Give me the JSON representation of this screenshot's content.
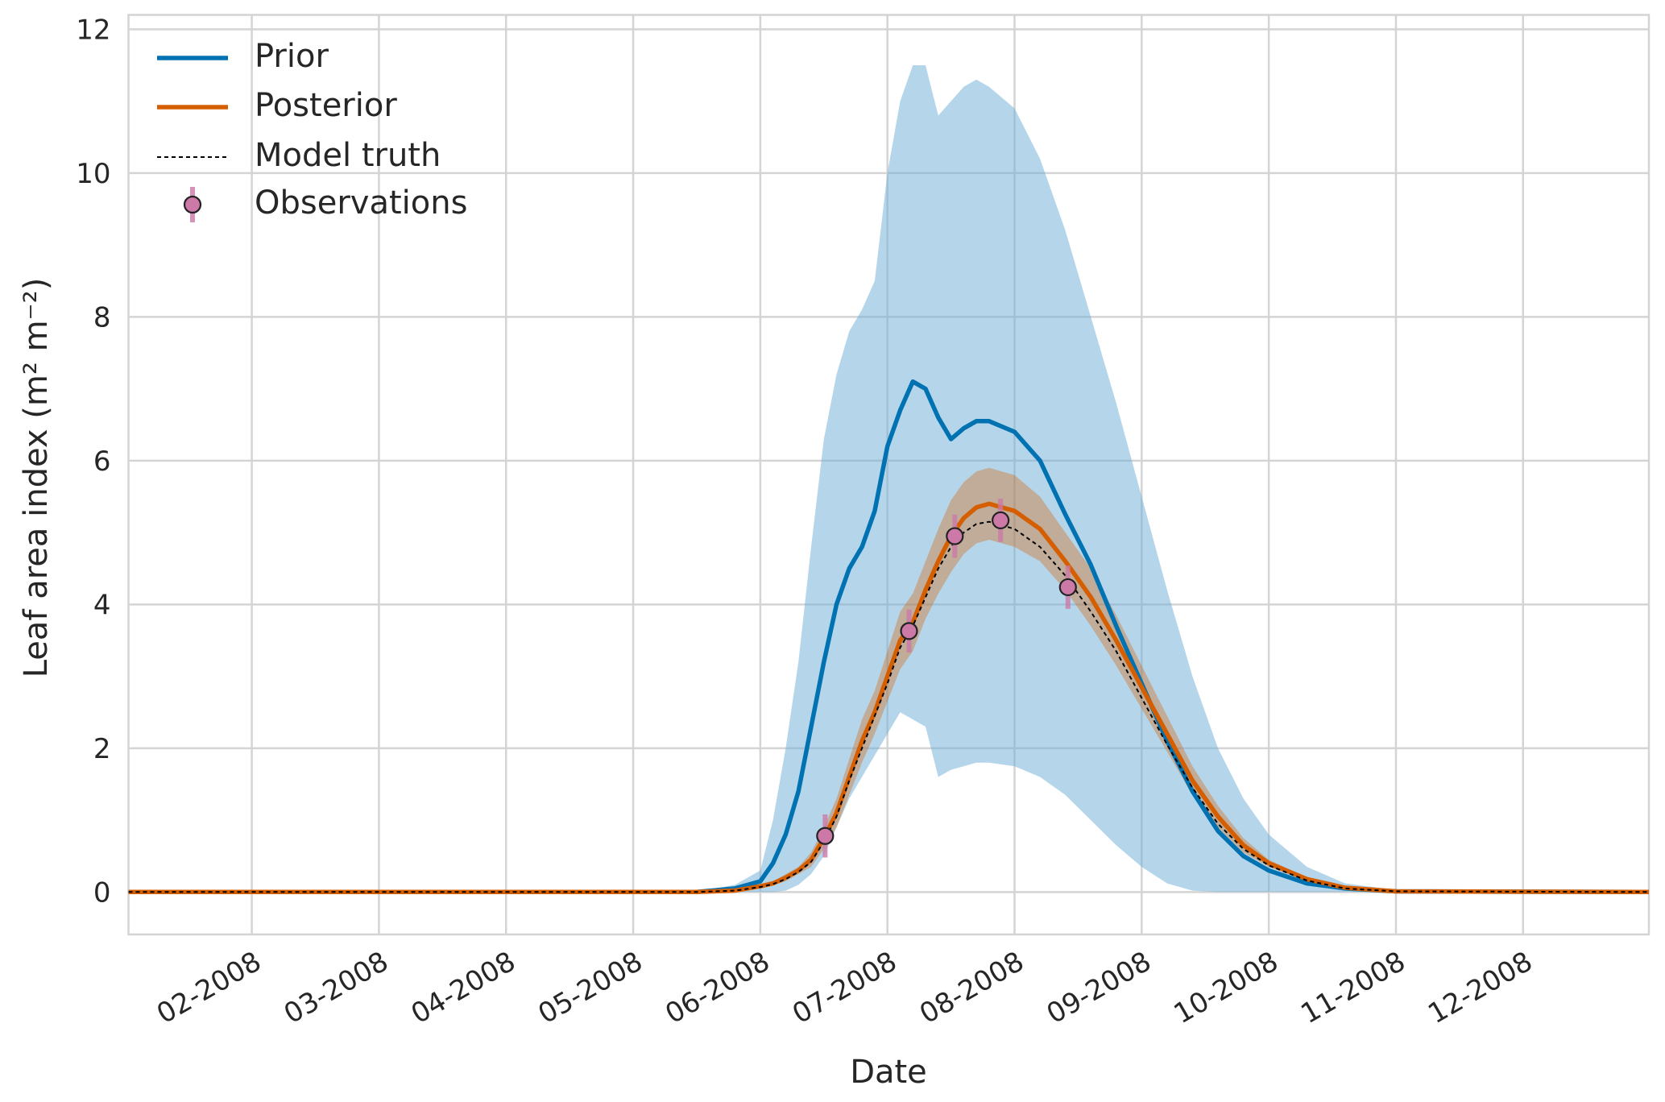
{
  "chart_data": {
    "type": "line",
    "xlabel": "Date",
    "ylabel": "Leaf area index (m² m⁻²)",
    "x": [
      1.03,
      5.5,
      5.8,
      6.0,
      6.1,
      6.2,
      6.3,
      6.4,
      6.5,
      6.6,
      6.7,
      6.8,
      6.9,
      7.0,
      7.1,
      7.2,
      7.3,
      7.4,
      7.5,
      7.6,
      7.7,
      7.8,
      8.0,
      8.2,
      8.4,
      8.6,
      8.8,
      9.0,
      9.2,
      9.4,
      9.6,
      9.8,
      10.0,
      10.3,
      10.6,
      11.0,
      12.99
    ],
    "xlim": [
      1.03,
      12.99
    ],
    "xticks": [
      {
        "value": 2,
        "label": "02-2008"
      },
      {
        "value": 3,
        "label": "03-2008"
      },
      {
        "value": 4,
        "label": "04-2008"
      },
      {
        "value": 5,
        "label": "05-2008"
      },
      {
        "value": 6,
        "label": "06-2008"
      },
      {
        "value": 7,
        "label": "07-2008"
      },
      {
        "value": 8,
        "label": "08-2008"
      },
      {
        "value": 9,
        "label": "09-2008"
      },
      {
        "value": 10,
        "label": "10-2008"
      },
      {
        "value": 11,
        "label": "11-2008"
      },
      {
        "value": 12,
        "label": "12-2008"
      }
    ],
    "ylim": [
      -0.59,
      12.2
    ],
    "yticks": [
      0,
      2,
      4,
      6,
      8,
      10,
      12
    ],
    "grid": true,
    "legend": "upper left",
    "series": [
      {
        "name": "Prior",
        "color": "#0072b2",
        "band_color": "#6baed6",
        "values": [
          0,
          0,
          0.05,
          0.15,
          0.4,
          0.8,
          1.4,
          2.3,
          3.2,
          4.0,
          4.5,
          4.8,
          5.3,
          6.2,
          6.7,
          7.1,
          7.0,
          6.6,
          6.3,
          6.45,
          6.55,
          6.55,
          6.4,
          6.0,
          5.25,
          4.55,
          3.7,
          2.9,
          2.1,
          1.4,
          0.85,
          0.5,
          0.3,
          0.12,
          0.05,
          0.01,
          0
        ],
        "upper": [
          0,
          0,
          0.1,
          0.3,
          1.0,
          2.0,
          3.2,
          4.8,
          6.3,
          7.2,
          7.8,
          8.1,
          8.5,
          10.0,
          11.0,
          11.5,
          11.5,
          10.8,
          11.0,
          11.2,
          11.3,
          11.2,
          10.9,
          10.2,
          9.2,
          8.0,
          6.8,
          5.5,
          4.2,
          3.0,
          2.0,
          1.3,
          0.8,
          0.35,
          0.12,
          0.03,
          0
        ],
        "lower": [
          0,
          0,
          0,
          0,
          0,
          0.02,
          0.1,
          0.25,
          0.5,
          0.9,
          1.3,
          1.6,
          1.9,
          2.2,
          2.5,
          2.4,
          2.3,
          1.6,
          1.7,
          1.75,
          1.8,
          1.8,
          1.75,
          1.6,
          1.35,
          1.0,
          0.65,
          0.35,
          0.12,
          0.02,
          0,
          0,
          0,
          0,
          0,
          0,
          0
        ]
      },
      {
        "name": "Posterior",
        "color": "#d55e00",
        "band_color": "#d55e00",
        "values": [
          0,
          0,
          0.02,
          0.08,
          0.12,
          0.2,
          0.3,
          0.45,
          0.75,
          1.1,
          1.6,
          2.1,
          2.5,
          3.0,
          3.5,
          3.75,
          4.2,
          4.6,
          4.95,
          5.2,
          5.35,
          5.4,
          5.3,
          5.05,
          4.6,
          4.1,
          3.5,
          2.85,
          2.2,
          1.55,
          1.05,
          0.65,
          0.4,
          0.18,
          0.06,
          0.01,
          0
        ],
        "upper": [
          0,
          0,
          0.03,
          0.1,
          0.15,
          0.25,
          0.35,
          0.55,
          0.9,
          1.3,
          1.85,
          2.4,
          2.8,
          3.35,
          3.9,
          4.15,
          4.6,
          5.05,
          5.45,
          5.7,
          5.85,
          5.9,
          5.8,
          5.5,
          5.0,
          4.5,
          3.85,
          3.15,
          2.45,
          1.75,
          1.2,
          0.75,
          0.45,
          0.2,
          0.07,
          0.01,
          0
        ],
        "lower": [
          0,
          0,
          0.01,
          0.06,
          0.09,
          0.15,
          0.25,
          0.35,
          0.6,
          0.9,
          1.35,
          1.8,
          2.2,
          2.65,
          3.1,
          3.35,
          3.8,
          4.15,
          4.45,
          4.7,
          4.85,
          4.9,
          4.8,
          4.6,
          4.2,
          3.7,
          3.15,
          2.55,
          1.95,
          1.35,
          0.9,
          0.55,
          0.35,
          0.16,
          0.05,
          0.01,
          0
        ]
      },
      {
        "name": "Model truth",
        "color": "#000000",
        "dashed": true,
        "values": [
          0,
          0,
          0.02,
          0.07,
          0.11,
          0.18,
          0.28,
          0.42,
          0.7,
          1.05,
          1.55,
          2.0,
          2.45,
          2.9,
          3.4,
          3.7,
          4.1,
          4.5,
          4.8,
          5.0,
          5.12,
          5.15,
          5.05,
          4.8,
          4.4,
          3.9,
          3.35,
          2.7,
          2.05,
          1.45,
          0.95,
          0.6,
          0.37,
          0.16,
          0.05,
          0.01,
          0
        ]
      },
      {
        "name": "Observations",
        "type": "errorbar",
        "color": "#cc79a7",
        "x": [
          6.51,
          7.17,
          7.53,
          7.89,
          8.42
        ],
        "values": [
          0.78,
          3.63,
          4.95,
          5.17,
          4.24
        ],
        "errors": [
          0.3,
          0.3,
          0.3,
          0.3,
          0.3
        ]
      }
    ]
  }
}
